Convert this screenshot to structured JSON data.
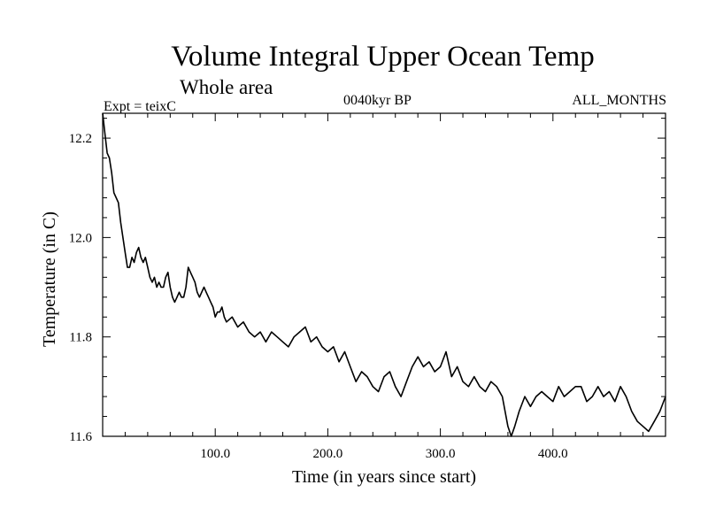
{
  "header": {
    "title": "Volume Integral Upper Ocean Temp",
    "subtitle": "Whole area",
    "experiment": "Expt = teixC",
    "period": "0040kyr BP",
    "months": "ALL_MONTHS"
  },
  "chart_data": {
    "type": "line",
    "title": "Volume Integral Upper Ocean Temp",
    "subtitle": "Whole area",
    "xlabel": "Time (in years since start)",
    "ylabel": "Temperature (in C)",
    "xlim": [
      0,
      500
    ],
    "ylim": [
      11.6,
      12.25
    ],
    "xticks": [
      100,
      200,
      300,
      400
    ],
    "xtick_labels": [
      "100.0",
      "200.0",
      "300.0",
      "400.0"
    ],
    "yticks": [
      11.6,
      11.8,
      12.0,
      12.2
    ],
    "ytick_labels": [
      "11.6",
      "11.8",
      "12.0",
      "12.2"
    ],
    "grid": false,
    "line_color": "#000000",
    "series": [
      {
        "x": [
          0,
          2,
          4,
          6,
          8,
          10,
          12,
          14,
          16,
          18,
          20,
          22,
          24,
          26,
          28,
          30,
          32,
          34,
          36,
          38,
          40,
          42,
          44,
          46,
          48,
          50,
          52,
          54,
          56,
          58,
          60,
          62,
          64,
          66,
          68,
          70,
          72,
          74,
          76,
          78,
          80,
          82,
          84,
          86,
          88,
          90,
          92,
          94,
          96,
          98,
          100,
          102,
          104,
          106,
          108,
          110,
          115,
          120,
          125,
          130,
          135,
          140,
          145,
          150,
          155,
          160,
          165,
          170,
          175,
          180,
          185,
          190,
          195,
          200,
          205,
          210,
          215,
          220,
          225,
          230,
          235,
          240,
          245,
          250,
          255,
          260,
          265,
          270,
          275,
          280,
          285,
          290,
          295,
          300,
          305,
          310,
          315,
          320,
          325,
          330,
          335,
          340,
          345,
          350,
          355,
          360,
          363,
          366,
          370,
          375,
          380,
          385,
          390,
          395,
          400,
          405,
          410,
          415,
          420,
          425,
          430,
          435,
          440,
          445,
          450,
          455,
          460,
          465,
          470,
          475,
          480,
          485,
          490,
          495,
          500
        ],
        "y": [
          12.25,
          12.21,
          12.17,
          12.16,
          12.13,
          12.09,
          12.08,
          12.07,
          12.03,
          12.0,
          11.97,
          11.94,
          11.94,
          11.96,
          11.95,
          11.97,
          11.98,
          11.96,
          11.95,
          11.96,
          11.94,
          11.92,
          11.91,
          11.92,
          11.9,
          11.91,
          11.9,
          11.9,
          11.92,
          11.93,
          11.9,
          11.88,
          11.87,
          11.88,
          11.89,
          11.88,
          11.88,
          11.9,
          11.94,
          11.93,
          11.92,
          11.91,
          11.89,
          11.88,
          11.89,
          11.9,
          11.89,
          11.88,
          11.87,
          11.86,
          11.84,
          11.85,
          11.85,
          11.86,
          11.84,
          11.83,
          11.84,
          11.82,
          11.83,
          11.81,
          11.8,
          11.81,
          11.79,
          11.81,
          11.8,
          11.79,
          11.78,
          11.8,
          11.81,
          11.82,
          11.79,
          11.8,
          11.78,
          11.77,
          11.78,
          11.75,
          11.77,
          11.74,
          11.71,
          11.73,
          11.72,
          11.7,
          11.69,
          11.72,
          11.73,
          11.7,
          11.68,
          11.71,
          11.74,
          11.76,
          11.74,
          11.75,
          11.73,
          11.74,
          11.77,
          11.72,
          11.74,
          11.71,
          11.7,
          11.72,
          11.7,
          11.69,
          11.71,
          11.7,
          11.68,
          11.62,
          11.6,
          11.62,
          11.65,
          11.68,
          11.66,
          11.68,
          11.69,
          11.68,
          11.67,
          11.7,
          11.68,
          11.69,
          11.7,
          11.7,
          11.67,
          11.68,
          11.7,
          11.68,
          11.69,
          11.67,
          11.7,
          11.68,
          11.65,
          11.63,
          11.62,
          11.61,
          11.63,
          11.65,
          11.68
        ]
      }
    ]
  }
}
